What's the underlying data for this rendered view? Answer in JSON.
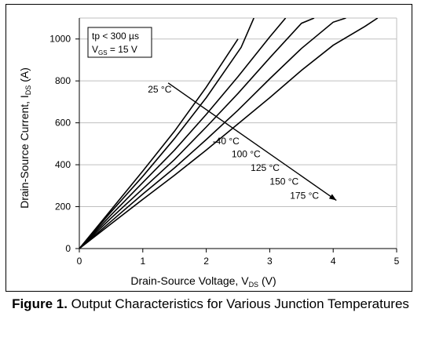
{
  "caption": {
    "label": "Figure 1.",
    "text": "Output Characteristics for Various Junction Temperatures"
  },
  "chart_data": {
    "type": "line",
    "xlabel_main": "Drain-Source Voltage, V",
    "xlabel_sub": "DS",
    "xlabel_unit": "(V)",
    "ylabel_main": "Drain-Source Current, I",
    "ylabel_sub": "DS",
    "ylabel_unit": "(A)",
    "xlim": [
      0,
      5
    ],
    "ylim": [
      0,
      1100
    ],
    "xticks": [
      0,
      1,
      2,
      3,
      4,
      5
    ],
    "yticks": [
      0,
      200,
      400,
      600,
      800,
      1000
    ],
    "grid": "horizontal",
    "conditions": {
      "line1": "tp < 300 µs",
      "line2_main": "V",
      "line2_sub": "GS",
      "line2_rest": " = 15 V"
    },
    "series": [
      {
        "name": "25 °C",
        "x": [
          0,
          0.5,
          1.0,
          1.5,
          2.0,
          2.5
        ],
        "y": [
          0,
          185,
          370,
          560,
          770,
          1000
        ]
      },
      {
        "name": "-40 °C",
        "x": [
          0,
          0.5,
          1.0,
          1.5,
          2.0,
          2.55,
          2.75
        ],
        "y": [
          0,
          175,
          345,
          525,
          720,
          960,
          1100
        ]
      },
      {
        "name": "100 °C",
        "x": [
          0,
          0.5,
          1.0,
          1.5,
          2.0,
          2.5,
          3.0,
          3.25
        ],
        "y": [
          0,
          160,
          315,
          470,
          640,
          820,
          1010,
          1100
        ]
      },
      {
        "name": "125 °C",
        "x": [
          0,
          0.5,
          1.0,
          1.5,
          2.0,
          2.5,
          3.0,
          3.5,
          3.7
        ],
        "y": [
          0,
          145,
          285,
          425,
          580,
          740,
          910,
          1075,
          1100
        ]
      },
      {
        "name": "150 °C",
        "x": [
          0,
          0.5,
          1.0,
          1.5,
          2.0,
          2.5,
          3.0,
          3.5,
          4.0,
          4.2
        ],
        "y": [
          0,
          130,
          260,
          385,
          520,
          660,
          810,
          955,
          1080,
          1100
        ]
      },
      {
        "name": "175 °C",
        "x": [
          0,
          0.5,
          1.0,
          1.5,
          2.0,
          2.5,
          3.0,
          3.5,
          4.0,
          4.5,
          4.7
        ],
        "y": [
          0,
          118,
          235,
          350,
          470,
          595,
          720,
          850,
          970,
          1060,
          1100
        ]
      }
    ],
    "arrow": {
      "from": [
        1.4,
        790
      ],
      "to": [
        4.05,
        230
      ]
    },
    "annotations": [
      {
        "text": "25 °C",
        "x": 1.08,
        "y": 745
      },
      {
        "text": "-40 °C",
        "x": 2.1,
        "y": 498
      },
      {
        "text": "100 °C",
        "x": 2.4,
        "y": 435
      },
      {
        "text": "125 °C",
        "x": 2.7,
        "y": 370
      },
      {
        "text": "150 °C",
        "x": 3.0,
        "y": 305
      },
      {
        "text": "175 °C",
        "x": 3.32,
        "y": 238
      }
    ]
  }
}
